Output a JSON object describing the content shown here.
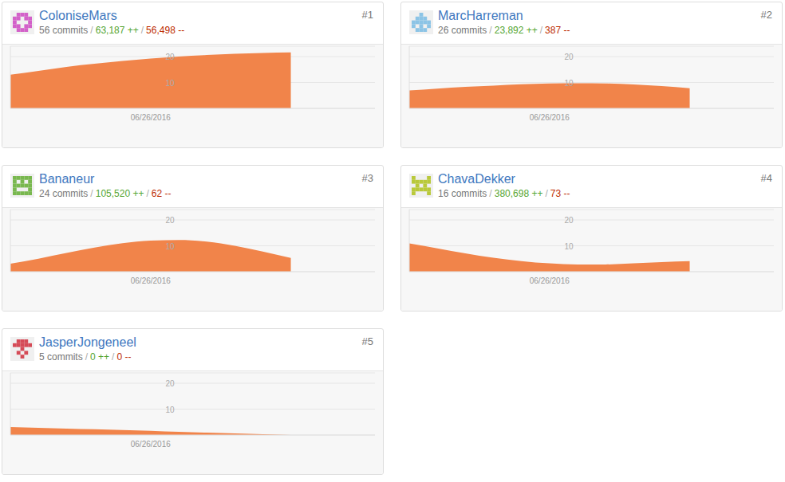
{
  "chart_data": [
    {
      "type": "area",
      "title": "ColoniseMars",
      "rank": "#1",
      "subtitle_parts": [
        "56 commits",
        "/",
        "63,187 ++",
        "/",
        "56,498 --"
      ],
      "categories": [
        null,
        null,
        null,
        null,
        null,
        "06/26/2016",
        null,
        null,
        null,
        null,
        null,
        null,
        null,
        null
      ],
      "values": [
        13,
        14.5,
        16,
        17.2,
        18.3,
        19.2,
        20,
        20.6,
        21.1,
        21.4,
        21.6,
        null,
        null,
        null
      ],
      "color": "#f1844a",
      "ylim": [
        0,
        24
      ],
      "yticks": [
        10,
        20
      ],
      "grid": true
    },
    {
      "type": "area",
      "title": "MarcHarreman",
      "rank": "#2",
      "subtitle_parts": [
        "26 commits",
        "/",
        "23,892 ++",
        "/",
        "387 --"
      ],
      "categories": [
        null,
        null,
        null,
        null,
        null,
        "06/26/2016",
        null,
        null,
        null,
        null,
        null,
        null,
        null,
        null
      ],
      "values": [
        6.9,
        7.6,
        8.3,
        8.8,
        9.3,
        9.6,
        9.7,
        9.6,
        9.2,
        8.6,
        7.8,
        null,
        null,
        null
      ],
      "color": "#f1844a",
      "ylim": [
        0,
        24
      ],
      "yticks": [
        10,
        20
      ],
      "grid": true
    },
    {
      "type": "area",
      "title": "Bananeur",
      "rank": "#3",
      "subtitle_parts": [
        "24 commits",
        "/",
        "105,520 ++",
        "/",
        "62 --"
      ],
      "categories": [
        null,
        null,
        null,
        null,
        null,
        "06/26/2016",
        null,
        null,
        null,
        null,
        null,
        null,
        null,
        null
      ],
      "values": [
        3.1,
        5,
        7.2,
        9.3,
        11,
        12,
        12.2,
        11.6,
        10,
        7.8,
        5.3,
        null,
        null,
        null
      ],
      "color": "#f1844a",
      "ylim": [
        0,
        24
      ],
      "yticks": [
        10,
        20
      ],
      "grid": true
    },
    {
      "type": "area",
      "title": "ChavaDekker",
      "rank": "#4",
      "subtitle_parts": [
        "16 commits",
        "/",
        "380,698 ++",
        "/",
        "73 --"
      ],
      "categories": [
        null,
        null,
        null,
        null,
        null,
        "06/26/2016",
        null,
        null,
        null,
        null,
        null,
        null,
        null,
        null
      ],
      "values": [
        10.9,
        9,
        7.1,
        5.4,
        4.1,
        3.2,
        2.8,
        2.8,
        3.2,
        3.7,
        4.1,
        null,
        null,
        null
      ],
      "color": "#f1844a",
      "ylim": [
        0,
        24
      ],
      "yticks": [
        10,
        20
      ],
      "grid": true
    },
    {
      "type": "area",
      "title": "JasperJongeneel",
      "rank": "#5",
      "subtitle_parts": [
        "5 commits",
        "/",
        "0 ++",
        "/",
        "0 --"
      ],
      "categories": [
        null,
        null,
        null,
        null,
        null,
        "06/26/2016",
        null,
        null,
        null,
        null,
        null,
        null,
        null,
        null
      ],
      "values": [
        3.1,
        2.8,
        2.5,
        2.2,
        1.9,
        1.6,
        1.2,
        0.9,
        0.6,
        0.3,
        0,
        null,
        null,
        null
      ],
      "color": "#f1844a",
      "ylim": [
        0,
        24
      ],
      "yticks": [
        10,
        20
      ],
      "grid": true
    }
  ]
}
